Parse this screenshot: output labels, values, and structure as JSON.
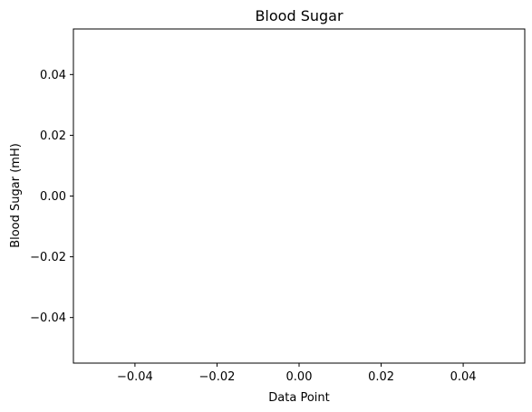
{
  "chart_data": {
    "type": "line",
    "title": "Blood Sugar",
    "xlabel": "Data Point",
    "ylabel": "Blood Sugar (mH)",
    "xlim": [
      -0.055,
      0.055
    ],
    "ylim": [
      -0.055,
      0.055
    ],
    "x_ticks": [
      -0.04,
      -0.02,
      0.0,
      0.02,
      0.04
    ],
    "x_tick_labels": [
      "−0.04",
      "−0.02",
      "0.00",
      "0.02",
      "0.04"
    ],
    "y_ticks": [
      -0.04,
      -0.02,
      0.0,
      0.02,
      0.04
    ],
    "y_tick_labels": [
      "−0.04",
      "−0.02",
      "0.00",
      "0.02",
      "0.04"
    ],
    "series": [],
    "grid": false,
    "legend": false
  },
  "colors": {
    "axes": "#000000",
    "background": "#ffffff"
  }
}
